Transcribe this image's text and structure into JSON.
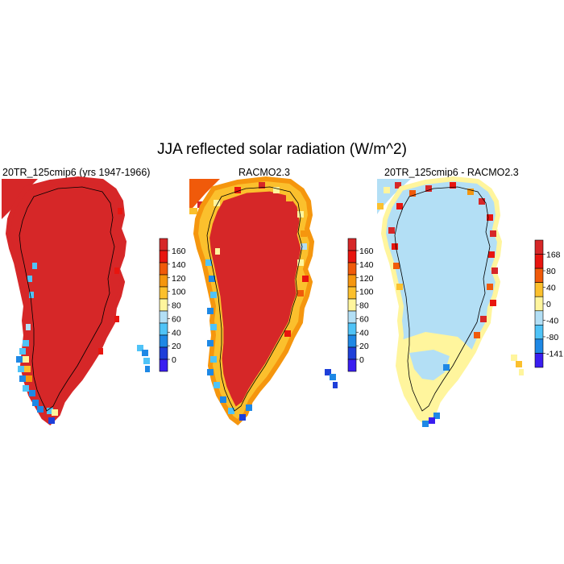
{
  "figure": {
    "title": "JJA reflected solar radiation (W/m^2)"
  },
  "panels": [
    {
      "title": "20TR_125cmip6 (yrs 1947-1966)",
      "colorbar": {
        "labels": [
          "160",
          "140",
          "120",
          "100",
          "80",
          "60",
          "40",
          "20",
          "0"
        ],
        "colors": [
          "#d62728",
          "#e8150f",
          "#f05a0a",
          "#f5960e",
          "#fbc02d",
          "#fff59d",
          "#b3dff5",
          "#4fc3f7",
          "#1e88e5",
          "#1e3fd9",
          "#3a1ef0"
        ]
      }
    },
    {
      "title": "RACMO2.3",
      "colorbar": {
        "labels": [
          "160",
          "140",
          "120",
          "100",
          "80",
          "60",
          "40",
          "20",
          "0"
        ],
        "colors": [
          "#d62728",
          "#e8150f",
          "#f05a0a",
          "#f5960e",
          "#fbc02d",
          "#fff59d",
          "#b3dff5",
          "#4fc3f7",
          "#1e88e5",
          "#1e3fd9",
          "#3a1ef0"
        ]
      }
    },
    {
      "title": "20TR_125cmip6 - RACMO2.3",
      "colorbar": {
        "labels": [
          "168",
          "80",
          "40",
          "0",
          "-40",
          "-80",
          "-141"
        ],
        "colors": [
          "#d62728",
          "#e8150f",
          "#f05a0a",
          "#fbc02d",
          "#fff59d",
          "#b3dff5",
          "#4fc3f7",
          "#1e88e5",
          "#3a1ef0"
        ]
      }
    }
  ]
}
